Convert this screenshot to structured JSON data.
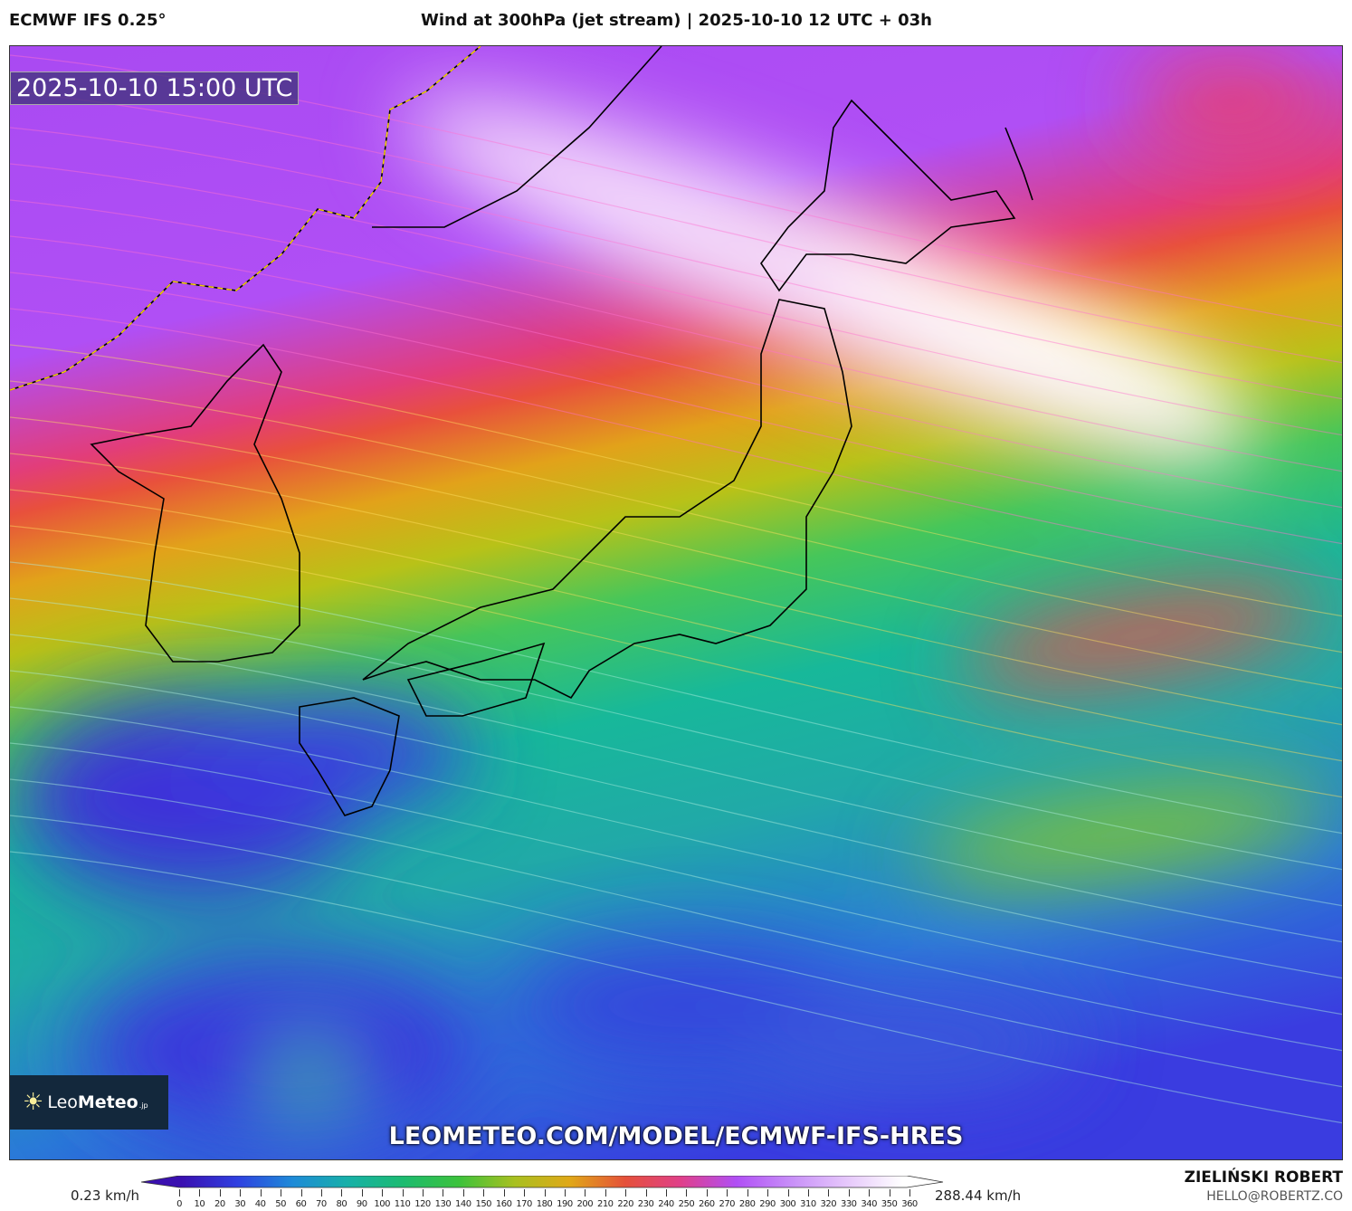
{
  "header": {
    "model": "ECMWF IFS 0.25°",
    "title": "Wind at 300hPa (jet stream) | 2025-10-10 12 UTC + 03h"
  },
  "map": {
    "valid_time": "2025-10-10 15:00 UTC",
    "region": "Japan / Korea / NW Pacific",
    "watermark_url": "LEOMETEO.COM/MODEL/ECMWF-IFS-HRES"
  },
  "logo": {
    "text_light": "Leo",
    "text_bold": "Meteo",
    "suffix": ".jp"
  },
  "colorbar": {
    "min_label": "0.23 km/h",
    "max_label": "288.44 km/h",
    "ticks": [
      "0",
      "10",
      "20",
      "30",
      "40",
      "50",
      "60",
      "70",
      "80",
      "90",
      "100",
      "110",
      "120",
      "130",
      "140",
      "150",
      "160",
      "170",
      "180",
      "190",
      "200",
      "210",
      "220",
      "230",
      "240",
      "250",
      "260",
      "270",
      "280",
      "290",
      "300",
      "310",
      "320",
      "330",
      "340",
      "350",
      "360"
    ],
    "colors": [
      "#3a10b0",
      "#2f3fe0",
      "#1e8ad8",
      "#17b0a8",
      "#1cbb70",
      "#3cc23c",
      "#a8c020",
      "#e0a818",
      "#e5503a",
      "#e0408a",
      "#b04ff5",
      "#c890f8",
      "#e6c8fb",
      "#ffffff"
    ]
  },
  "credits": {
    "author": "ZIELIŃSKI ROBERT",
    "email": "HELLO@ROBERTZ.CO"
  }
}
